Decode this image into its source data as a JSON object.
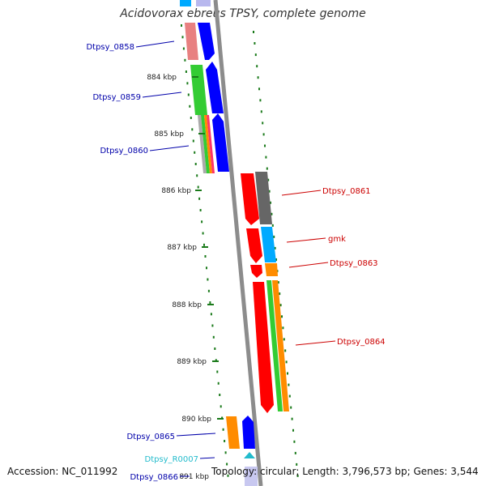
{
  "title": "Acidovorax ebreus TPSY, complete genome",
  "footer": {
    "accession": "Accession: NC_011992",
    "summary": "Topology: circular; Length: 3,796,573 bp; Genes: 3,544"
  },
  "scale_labels": [
    "884 kbp",
    "885 kbp",
    "886 kbp",
    "887 kbp",
    "888 kbp",
    "889 kbp",
    "890 kbp",
    "891 kbp"
  ],
  "genes_left": [
    {
      "label": "Dtpsy_0858",
      "color": "#0000aa"
    },
    {
      "label": "Dtpsy_0859",
      "color": "#0000aa"
    },
    {
      "label": "Dtpsy_0860",
      "color": "#0000aa"
    },
    {
      "label": "Dtpsy_0865",
      "color": "#0000aa"
    },
    {
      "label": "Dtpsy_R0007",
      "color": "#22bbcc"
    },
    {
      "label": "Dtpsy_0866",
      "color": "#0000aa"
    }
  ],
  "genes_right": [
    {
      "label": "Dtpsy_0861",
      "color": "#cc0000"
    },
    {
      "label": "gmk",
      "color": "#cc0000"
    },
    {
      "label": "Dtpsy_0863",
      "color": "#cc0000"
    },
    {
      "label": "Dtpsy_0864",
      "color": "#cc0000"
    }
  ],
  "colors": {
    "backbone": "#8c8c8c",
    "forward": "#0000ff",
    "reverse": "#ff0000",
    "cog_green": "#33cc33",
    "cog_orange": "#ff8c00",
    "cog_cyan": "#00aaff",
    "cog_gray": "#666666",
    "cog_pink": "#e88080",
    "tick_green": "#1a7a1a"
  }
}
